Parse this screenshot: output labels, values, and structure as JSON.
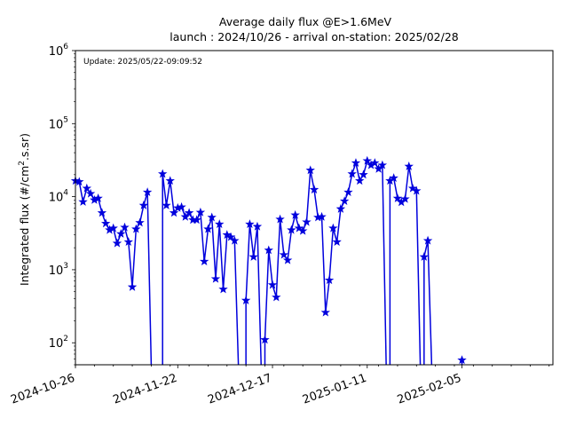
{
  "chart_data": {
    "type": "line",
    "title_line1": "Average daily flux @E>1.6MeV",
    "title_line2": "launch : 2024/10/26 - arrival on-station: 2025/02/28",
    "ylabel_main": "Integrated flux (#/cm",
    "ylabel_sup": "2",
    "ylabel_tail": ".s.sr)",
    "annotation": "Update: 2025/05/22-09:09:52",
    "y_scale": "log",
    "ylim": [
      50,
      1000000
    ],
    "xlim": [
      "2024-10-26",
      "2025-03-01"
    ],
    "grid": false,
    "x_ticks": [
      "2024-10-26",
      "2024-11-22",
      "2024-12-17",
      "2025-01-11",
      "2025-02-05"
    ],
    "y_ticks": [
      {
        "value": 100,
        "base": "10",
        "exp": "2"
      },
      {
        "value": 1000,
        "base": "10",
        "exp": "3"
      },
      {
        "value": 10000,
        "base": "10",
        "exp": "4"
      },
      {
        "value": 100000,
        "base": "10",
        "exp": "5"
      },
      {
        "value": 1000000,
        "base": "10",
        "exp": "6"
      }
    ],
    "line_color": "#0000dd",
    "marker": "star",
    "series": [
      {
        "x": [
          "2024-10-26",
          "2024-10-27",
          "2024-10-28",
          "2024-10-29",
          "2024-10-30",
          "2024-10-31",
          "2024-11-01",
          "2024-11-02",
          "2024-11-03",
          "2024-11-04",
          "2024-11-05",
          "2024-11-06",
          "2024-11-07",
          "2024-11-08",
          "2024-11-09",
          "2024-11-10",
          "2024-11-11",
          "2024-11-12",
          "2024-11-13",
          "2024-11-14",
          "2024-11-15",
          "2024-11-16",
          "2024-11-17",
          "2024-11-18",
          "2024-11-19",
          "2024-11-20",
          "2024-11-21",
          "2024-11-22",
          "2024-11-23",
          "2024-11-24",
          "2024-11-25",
          "2024-11-26",
          "2024-11-27",
          "2024-11-28",
          "2024-11-29",
          "2024-11-30",
          "2024-12-01",
          "2024-12-02",
          "2024-12-03",
          "2024-12-04",
          "2024-12-05",
          "2024-12-06",
          "2024-12-07",
          "2024-12-08",
          "2024-12-09",
          "2024-12-10",
          "2024-12-11",
          "2024-12-12",
          "2024-12-13",
          "2024-12-14",
          "2024-12-15",
          "2024-12-16",
          "2024-12-17",
          "2024-12-18",
          "2024-12-19",
          "2024-12-20",
          "2024-12-21",
          "2024-12-22",
          "2024-12-23",
          "2024-12-24",
          "2024-12-25",
          "2024-12-26",
          "2024-12-27",
          "2024-12-28",
          "2024-12-29",
          "2024-12-30",
          "2024-12-31",
          "2025-01-01",
          "2025-01-02",
          "2025-01-03",
          "2025-01-04",
          "2025-01-05",
          "2025-01-06",
          "2025-01-07",
          "2025-01-08",
          "2025-01-09",
          "2025-01-10",
          "2025-01-11",
          "2025-01-12",
          "2025-01-13",
          "2025-01-14",
          "2025-01-15",
          "2025-01-16",
          "2025-01-17",
          "2025-01-18",
          "2025-01-19",
          "2025-01-20",
          "2025-01-21",
          "2025-01-22",
          "2025-01-23",
          "2025-01-24",
          "2025-01-25",
          "2025-01-26",
          "2025-01-27",
          "2025-01-28",
          "2025-01-29",
          "2025-01-30",
          "2025-01-31",
          "2025-02-01",
          "2025-02-02",
          "2025-02-03",
          "2025-02-04",
          "2025-02-05"
        ],
        "values": [
          16500,
          16000,
          8500,
          13000,
          11000,
          9000,
          9500,
          6000,
          4300,
          3500,
          3700,
          2300,
          3100,
          3800,
          2400,
          580,
          3600,
          4400,
          7600,
          11500,
          null,
          null,
          null,
          20500,
          7600,
          16500,
          6000,
          7000,
          7200,
          5300,
          6000,
          4800,
          4800,
          6100,
          1300,
          3600,
          5200,
          750,
          4200,
          540,
          3000,
          2800,
          2500,
          null,
          null,
          380,
          4200,
          1500,
          3900,
          null,
          110,
          1850,
          620,
          420,
          4900,
          1600,
          1350,
          3500,
          5600,
          3700,
          3400,
          4500,
          23000,
          12500,
          5200,
          5300,
          260,
          720,
          3700,
          2400,
          6800,
          8700,
          11500,
          20500,
          29000,
          16500,
          20000,
          31000,
          27000,
          29000,
          24000,
          27000,
          null,
          16500,
          18000,
          9500,
          8400,
          9300,
          26000,
          13000,
          12000,
          null,
          1500,
          2500,
          null,
          null,
          null,
          null,
          null,
          null,
          null,
          null,
          58
        ]
      }
    ]
  }
}
